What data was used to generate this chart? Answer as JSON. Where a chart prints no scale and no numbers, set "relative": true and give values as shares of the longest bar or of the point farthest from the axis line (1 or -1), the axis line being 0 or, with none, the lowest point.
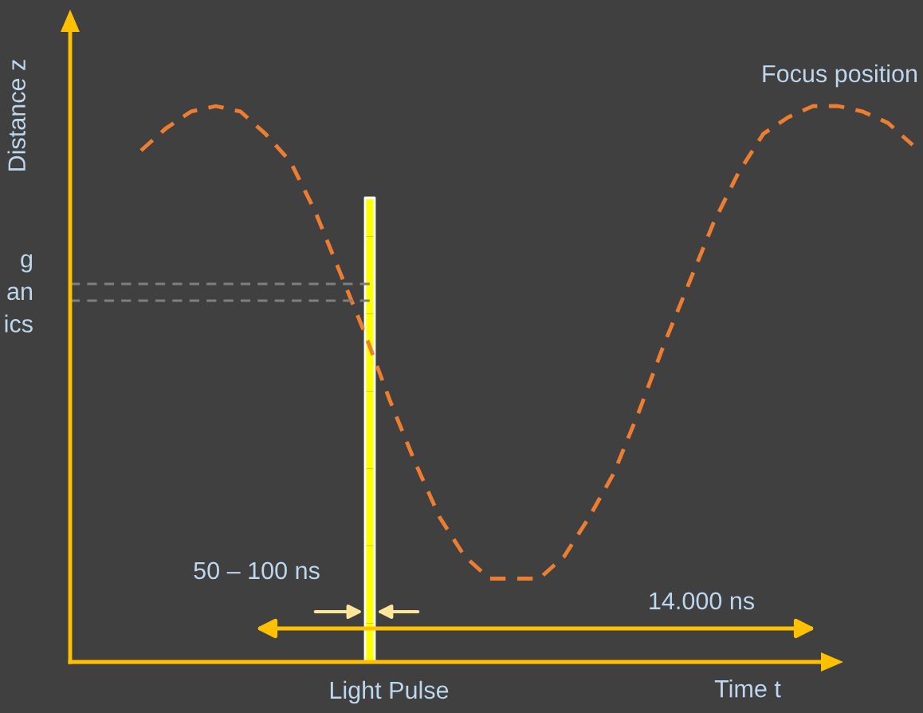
{
  "chart_data": {
    "type": "line",
    "relative": true,
    "xlabel": "Time t",
    "ylabel": "Distance z",
    "categories": [
      null,
      null,
      null,
      null,
      null,
      null,
      null,
      null,
      null,
      null,
      null,
      null,
      null,
      null,
      null,
      null,
      null,
      null,
      null,
      null,
      null,
      null,
      null,
      null,
      null,
      null,
      null,
      null,
      null,
      null,
      null,
      null
    ],
    "series": [
      {
        "name": "Focus position",
        "color": "#ed7d31",
        "line_style": "dashed",
        "marker": "none",
        "values": [
          0.92,
          0.96,
          0.99,
          1.0,
          0.99,
          0.95,
          0.9,
          0.81,
          0.7,
          0.59,
          0.47,
          0.36,
          0.26,
          0.19,
          0.15,
          0.15,
          0.15,
          0.19,
          0.26,
          0.34,
          0.45,
          0.57,
          0.68,
          0.79,
          0.88,
          0.95,
          0.98,
          1.0,
          1.0,
          0.99,
          0.97,
          0.93
        ]
      }
    ],
    "ref_lines": [
      {
        "axis": "y",
        "value": 0.68,
        "color": "#7f7f7f",
        "line_style": "dashed"
      },
      {
        "axis": "y",
        "value": 0.65,
        "color": "#7f7f7f",
        "line_style": "dashed"
      }
    ],
    "annotations": [
      "50 – 100 ns",
      "14.000 ns",
      "Light Pulse",
      "g\nan\nics"
    ],
    "grid": false,
    "legend": false
  }
}
